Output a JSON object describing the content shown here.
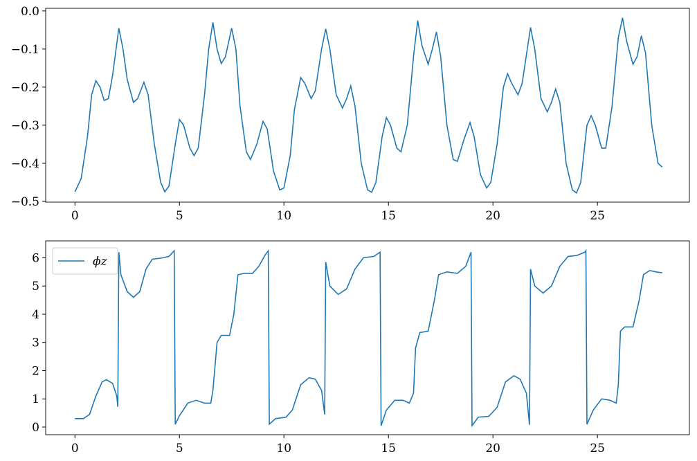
{
  "chart_data": [
    {
      "type": "line",
      "x": [
        0,
        0.3,
        0.6,
        0.8,
        1.0,
        1.2,
        1.4,
        1.6,
        1.8,
        2.1,
        2.3,
        2.5,
        2.8,
        3.0,
        3.3,
        3.5,
        3.8,
        4.1,
        4.3,
        4.5,
        4.8,
        5.0,
        5.2,
        5.5,
        5.7,
        5.9,
        6.2,
        6.4,
        6.6,
        6.8,
        7.0,
        7.2,
        7.5,
        7.7,
        7.9,
        8.2,
        8.4,
        8.7,
        9.0,
        9.2,
        9.5,
        9.8,
        10.0,
        10.3,
        10.5,
        10.8,
        11.0,
        11.3,
        11.5,
        11.8,
        12.0,
        12.2,
        12.5,
        12.8,
        13.0,
        13.2,
        13.4,
        13.7,
        14.0,
        14.2,
        14.4,
        14.7,
        14.9,
        15.1,
        15.4,
        15.6,
        15.9,
        16.2,
        16.4,
        16.6,
        16.9,
        17.1,
        17.3,
        17.5,
        17.8,
        18.1,
        18.3,
        18.6,
        18.9,
        19.1,
        19.4,
        19.7,
        19.9,
        20.2,
        20.5,
        20.7,
        20.9,
        21.2,
        21.4,
        21.8,
        22.0,
        22.3,
        22.6,
        22.8,
        23.0,
        23.2,
        23.5,
        23.8,
        24.0,
        24.2,
        24.5,
        24.7,
        24.9,
        25.2,
        25.4,
        25.7,
        26.0,
        26.2,
        26.4,
        26.7,
        26.9,
        27.1,
        27.3,
        27.6,
        27.9,
        28.1
      ],
      "series": [
        {
          "color": "#1f77b4",
          "values": [
            -0.475,
            -0.44,
            -0.33,
            -0.22,
            -0.183,
            -0.2,
            -0.235,
            -0.23,
            -0.17,
            -0.045,
            -0.1,
            -0.18,
            -0.24,
            -0.23,
            -0.187,
            -0.22,
            -0.35,
            -0.45,
            -0.475,
            -0.46,
            -0.35,
            -0.285,
            -0.3,
            -0.36,
            -0.38,
            -0.36,
            -0.22,
            -0.1,
            -0.03,
            -0.1,
            -0.138,
            -0.12,
            -0.045,
            -0.1,
            -0.25,
            -0.37,
            -0.39,
            -0.35,
            -0.29,
            -0.31,
            -0.42,
            -0.47,
            -0.465,
            -0.38,
            -0.26,
            -0.175,
            -0.19,
            -0.23,
            -0.21,
            -0.1,
            -0.047,
            -0.1,
            -0.22,
            -0.255,
            -0.23,
            -0.197,
            -0.25,
            -0.4,
            -0.47,
            -0.476,
            -0.45,
            -0.33,
            -0.28,
            -0.3,
            -0.36,
            -0.37,
            -0.3,
            -0.12,
            -0.025,
            -0.09,
            -0.14,
            -0.1,
            -0.055,
            -0.12,
            -0.3,
            -0.39,
            -0.395,
            -0.34,
            -0.293,
            -0.33,
            -0.43,
            -0.465,
            -0.45,
            -0.35,
            -0.2,
            -0.165,
            -0.19,
            -0.22,
            -0.19,
            -0.043,
            -0.1,
            -0.23,
            -0.265,
            -0.24,
            -0.205,
            -0.24,
            -0.4,
            -0.47,
            -0.478,
            -0.45,
            -0.3,
            -0.275,
            -0.3,
            -0.36,
            -0.36,
            -0.25,
            -0.07,
            -0.018,
            -0.08,
            -0.14,
            -0.12,
            -0.065,
            -0.11,
            -0.3,
            -0.4,
            -0.41
          ]
        }
      ],
      "xlim": [
        -1.4,
        29.4
      ],
      "xticks": [
        0,
        5,
        10,
        15,
        20,
        25
      ],
      "ylim": [
        -0.502,
        0.007
      ],
      "yticks": [
        {
          "value": -0.5,
          "label": "−0.5"
        },
        {
          "value": -0.4,
          "label": "−0.4"
        },
        {
          "value": -0.3,
          "label": "−0.3"
        },
        {
          "value": -0.2,
          "label": "−0.2"
        },
        {
          "value": -0.1,
          "label": "−0.1"
        },
        {
          "value": 0,
          "label": "0.0"
        }
      ]
    },
    {
      "type": "line",
      "x": [
        0,
        0.4,
        0.7,
        1.0,
        1.3,
        1.5,
        1.8,
        2.0,
        2.05,
        2.1,
        2.2,
        2.5,
        2.8,
        3.1,
        3.4,
        3.7,
        4.2,
        4.5,
        4.75,
        4.8,
        5.0,
        5.4,
        5.8,
        6.2,
        6.5,
        6.6,
        6.8,
        7.0,
        7.4,
        7.6,
        7.8,
        8.1,
        8.5,
        8.8,
        9.1,
        9.25,
        9.3,
        9.6,
        10.1,
        10.4,
        10.8,
        11.2,
        11.5,
        11.8,
        11.95,
        12.0,
        12.2,
        12.6,
        13.0,
        13.4,
        13.8,
        14.3,
        14.6,
        14.65,
        14.9,
        15.3,
        15.7,
        16.0,
        16.2,
        16.3,
        16.5,
        16.9,
        17.2,
        17.4,
        17.8,
        18.3,
        18.7,
        18.95,
        19.0,
        19.3,
        19.8,
        20.2,
        20.6,
        21.0,
        21.3,
        21.6,
        21.75,
        21.8,
        22.0,
        22.4,
        22.8,
        23.2,
        23.6,
        24.0,
        24.4,
        24.45,
        24.5,
        24.8,
        25.2,
        25.6,
        25.9,
        26.0,
        26.1,
        26.3,
        26.7,
        27.0,
        27.2,
        27.5,
        27.8,
        28.1
      ],
      "series": [
        {
          "name": "ϕz",
          "color": "#1f77b4",
          "values": [
            0.3,
            0.3,
            0.45,
            1.1,
            1.6,
            1.68,
            1.55,
            1.1,
            0.72,
            6.2,
            5.4,
            4.8,
            4.6,
            4.8,
            5.6,
            5.95,
            6.0,
            6.05,
            6.25,
            0.1,
            0.4,
            0.85,
            0.95,
            0.85,
            0.85,
            1.3,
            3.0,
            3.25,
            3.25,
            4.0,
            5.4,
            5.45,
            5.45,
            5.7,
            6.1,
            6.25,
            0.1,
            0.3,
            0.35,
            0.6,
            1.5,
            1.75,
            1.7,
            1.3,
            0.45,
            5.85,
            5.0,
            4.7,
            4.9,
            5.6,
            6.0,
            6.05,
            6.2,
            0.05,
            0.6,
            0.95,
            0.95,
            0.85,
            1.2,
            2.8,
            3.35,
            3.4,
            4.5,
            5.4,
            5.5,
            5.45,
            5.7,
            6.2,
            0.05,
            0.35,
            0.38,
            0.7,
            1.6,
            1.82,
            1.7,
            1.2,
            0.08,
            5.6,
            5.0,
            4.75,
            5.0,
            5.7,
            6.05,
            6.08,
            6.2,
            6.25,
            0.1,
            0.6,
            1.0,
            0.95,
            0.85,
            1.5,
            3.4,
            3.55,
            3.55,
            4.5,
            5.4,
            5.55,
            5.5,
            5.47
          ]
        }
      ],
      "xlim": [
        -1.4,
        29.4
      ],
      "xticks": [
        0,
        5,
        10,
        15,
        20,
        25
      ],
      "ylim": [
        -0.27,
        6.6
      ],
      "yticks": [
        0,
        1,
        2,
        3,
        4,
        5,
        6
      ],
      "legend": "upper left"
    }
  ]
}
